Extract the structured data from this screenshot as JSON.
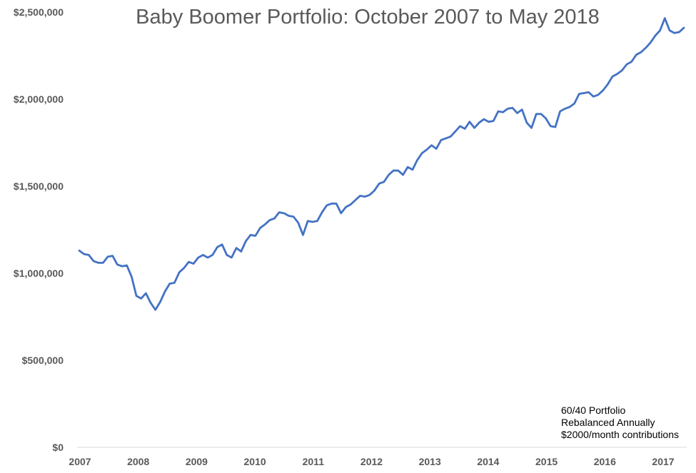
{
  "chart_data": {
    "type": "line",
    "title": "Baby Boomer Portfolio: October 2007 to May 2018",
    "xlabel": "",
    "ylabel": "",
    "x_tick_labels": [
      "2007",
      "2008",
      "2009",
      "2010",
      "2011",
      "2012",
      "2013",
      "2014",
      "2015",
      "2016",
      "2017"
    ],
    "y_tick_labels": [
      "$0",
      "$500,000",
      "$1,000,000",
      "$1,500,000",
      "$2,000,000",
      "$2,500,000"
    ],
    "ylim": [
      0,
      2500000
    ],
    "xlim": [
      "2007-10",
      "2018-05"
    ],
    "grid": false,
    "line_color": "#4472C4",
    "series": [
      {
        "values": [
          1130000,
          1110000,
          1105000,
          1070000,
          1060000,
          1060000,
          1095000,
          1100000,
          1050000,
          1040000,
          1045000,
          980000,
          870000,
          855000,
          885000,
          830000,
          790000,
          835000,
          895000,
          940000,
          945000,
          1005000,
          1030000,
          1065000,
          1055000,
          1090000,
          1105000,
          1090000,
          1105000,
          1150000,
          1165000,
          1105000,
          1090000,
          1145000,
          1125000,
          1185000,
          1220000,
          1215000,
          1260000,
          1280000,
          1305000,
          1315000,
          1350000,
          1345000,
          1330000,
          1325000,
          1290000,
          1220000,
          1300000,
          1295000,
          1300000,
          1350000,
          1390000,
          1400000,
          1400000,
          1345000,
          1380000,
          1395000,
          1420000,
          1445000,
          1440000,
          1450000,
          1475000,
          1515000,
          1525000,
          1565000,
          1590000,
          1590000,
          1565000,
          1610000,
          1595000,
          1650000,
          1690000,
          1710000,
          1735000,
          1715000,
          1765000,
          1775000,
          1785000,
          1815000,
          1845000,
          1830000,
          1870000,
          1835000,
          1865000,
          1885000,
          1870000,
          1875000,
          1930000,
          1925000,
          1945000,
          1950000,
          1920000,
          1940000,
          1865000,
          1835000,
          1915000,
          1915000,
          1890000,
          1845000,
          1840000,
          1930000,
          1945000,
          1955000,
          1975000,
          2030000,
          2035000,
          2040000,
          2015000,
          2025000,
          2050000,
          2085000,
          2130000,
          2145000,
          2165000,
          2200000,
          2215000,
          2255000,
          2270000,
          2295000,
          2325000,
          2365000,
          2395000,
          2465000,
          2395000,
          2380000,
          2385000,
          2410000
        ]
      }
    ],
    "annotation": [
      "60/40 Portfolio",
      "Rebalanced Annually",
      "$2000/month contributions"
    ]
  }
}
